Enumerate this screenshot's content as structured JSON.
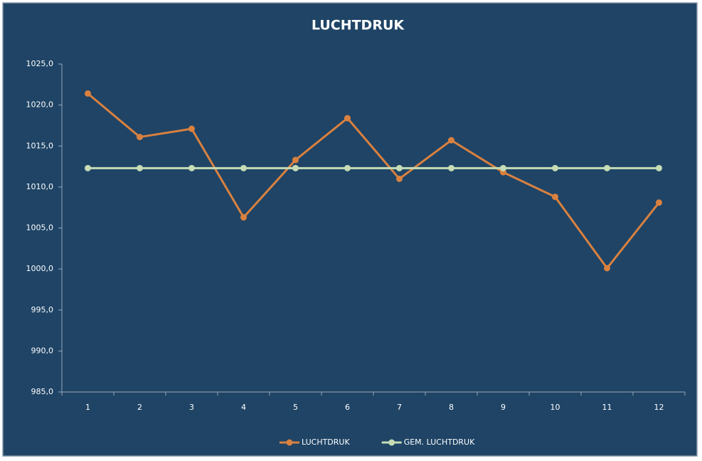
{
  "chart_data": {
    "type": "line",
    "title": "LUCHTDRUK",
    "categories": [
      "1",
      "2",
      "3",
      "4",
      "5",
      "6",
      "7",
      "8",
      "9",
      "10",
      "11",
      "12"
    ],
    "series": [
      {
        "name": "LUCHTDRUK",
        "color": "#d9813f",
        "values": [
          1021.4,
          1016.1,
          1017.1,
          1006.3,
          1013.3,
          1018.4,
          1011.0,
          1015.7,
          1011.8,
          1008.8,
          1000.1,
          1008.1
        ]
      },
      {
        "name": "GEM. LUCHTDRUK",
        "color": "#c5dcb5",
        "values": [
          1012.3,
          1012.3,
          1012.3,
          1012.3,
          1012.3,
          1012.3,
          1012.3,
          1012.3,
          1012.3,
          1012.3,
          1012.3,
          1012.3
        ]
      }
    ],
    "ylim": [
      985,
      1025
    ],
    "yticks": [
      {
        "value": 985,
        "label": "985,0"
      },
      {
        "value": 990,
        "label": "990,0"
      },
      {
        "value": 995,
        "label": "995,0"
      },
      {
        "value": 1000,
        "label": "1000,0"
      },
      {
        "value": 1005,
        "label": "1005,0"
      },
      {
        "value": 1010,
        "label": "1010,0"
      },
      {
        "value": 1015,
        "label": "1015,0"
      },
      {
        "value": 1020,
        "label": "1020,0"
      },
      {
        "value": 1025,
        "label": "1025,0"
      }
    ],
    "legend": "bottom"
  }
}
